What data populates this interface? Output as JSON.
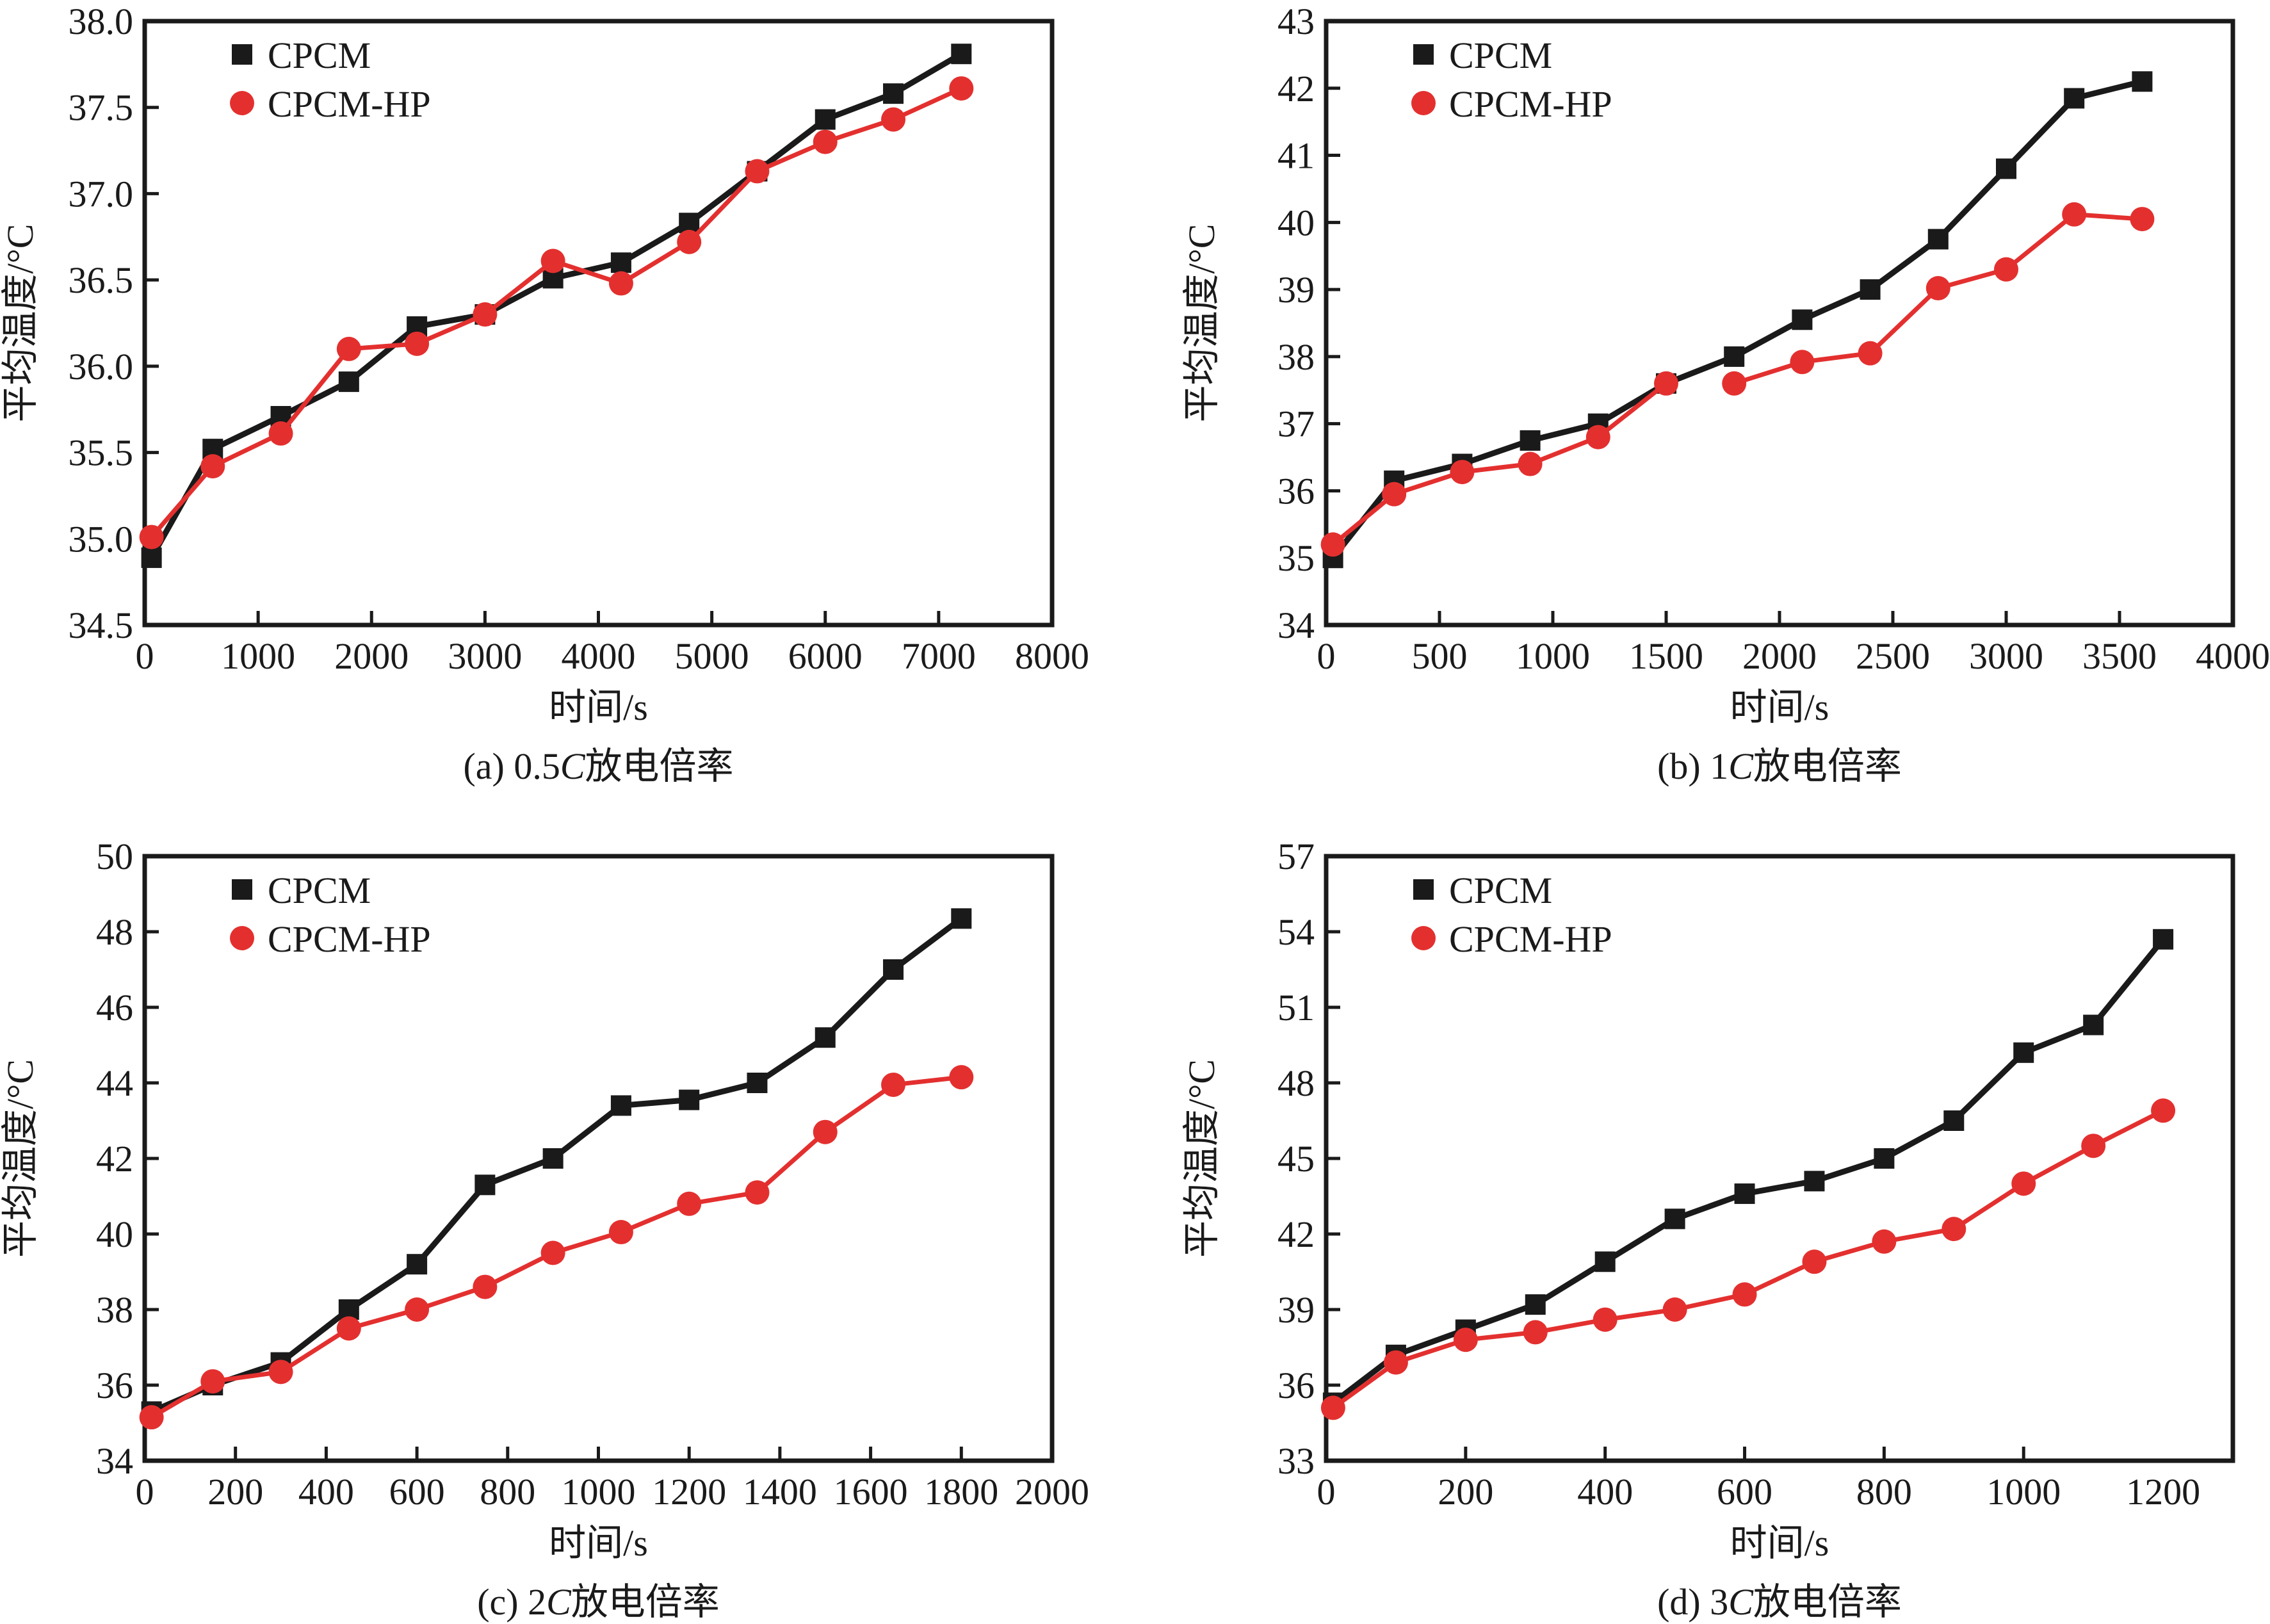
{
  "figure": {
    "colors": {
      "CPCM": "#1a1a1a",
      "CPCM-HP": "#e3302f",
      "axis": "#1a1a1a"
    }
  },
  "chart_data": [
    {
      "id": "a",
      "type": "line",
      "caption_prefix": "(a) 0.5",
      "caption_italic": "C",
      "caption_suffix": "放电倍率",
      "xlabel": "时间/s",
      "ylabel": "平均温度/°C",
      "xlim": [
        0,
        8000
      ],
      "ylim": [
        34.5,
        38.0
      ],
      "xticks": [
        0,
        1000,
        2000,
        3000,
        4000,
        5000,
        6000,
        7000,
        8000
      ],
      "xtick_labels": [
        "0",
        "1000",
        "2000",
        "3000",
        "4000",
        "5000",
        "6000",
        "7000",
        "8000"
      ],
      "yticks": [
        34.5,
        35.0,
        35.5,
        36.0,
        36.5,
        37.0,
        37.5,
        38.0
      ],
      "ytick_labels": [
        "34.5",
        "35.0",
        "35.5",
        "36.0",
        "36.5",
        "37.0",
        "37.5",
        "38.0"
      ],
      "grid": false,
      "legend_position": "top-left",
      "series": [
        {
          "name": "CPCM",
          "marker": "square",
          "x": [
            60,
            600,
            1200,
            1800,
            2400,
            3000,
            3600,
            4200,
            4800,
            5400,
            6000,
            6600,
            7200
          ],
          "y": [
            34.89,
            35.52,
            35.71,
            35.91,
            36.23,
            36.3,
            36.51,
            36.6,
            36.83,
            37.13,
            37.43,
            37.58,
            37.81
          ]
        },
        {
          "name": "CPCM-HP",
          "marker": "circle",
          "x": [
            60,
            600,
            1200,
            1800,
            2400,
            3000,
            3600,
            4200,
            4800,
            5400,
            6000,
            6600,
            7200
          ],
          "y": [
            35.01,
            35.42,
            35.61,
            36.1,
            36.13,
            36.3,
            36.61,
            36.48,
            36.72,
            37.13,
            37.3,
            37.43,
            37.61
          ]
        }
      ]
    },
    {
      "id": "b",
      "type": "line",
      "caption_prefix": "(b) 1",
      "caption_italic": "C",
      "caption_suffix": "放电倍率",
      "xlabel": "时间/s",
      "ylabel": "平均温度/°C",
      "xlim": [
        0,
        4000
      ],
      "ylim": [
        34,
        43
      ],
      "xticks": [
        0,
        500,
        1000,
        1500,
        2000,
        2500,
        3000,
        3500,
        4000
      ],
      "xtick_labels": [
        "0",
        "500",
        "1000",
        "1500",
        "2000",
        "2500",
        "3000",
        "3500",
        "4000"
      ],
      "yticks": [
        34,
        35,
        36,
        37,
        38,
        39,
        40,
        41,
        42,
        43
      ],
      "ytick_labels": [
        "34",
        "35",
        "36",
        "37",
        "38",
        "39",
        "40",
        "41",
        "42",
        "43"
      ],
      "grid": false,
      "legend_position": "top-left",
      "series": [
        {
          "name": "CPCM",
          "marker": "square",
          "x": [
            30,
            300,
            600,
            900,
            1200,
            1500,
            1800,
            2100,
            2400,
            2700,
            3000,
            3300,
            3600
          ],
          "y": [
            35.0,
            36.15,
            36.4,
            36.75,
            37.0,
            37.6,
            38.0,
            38.55,
            39.0,
            39.75,
            40.8,
            41.85,
            42.1
          ]
        },
        {
          "name": "CPCM-HP",
          "marker": "circle",
          "x": [
            30,
            300,
            600,
            900,
            1200,
            1500,
            1800,
            2100,
            2400,
            2700,
            3000,
            3300,
            3600
          ],
          "y": [
            35.2,
            35.95,
            36.28,
            36.4,
            36.8,
            37.6,
            37.6,
            37.92,
            38.05,
            39.02,
            39.3,
            40.12,
            40.05
          ],
          "segment_breaks": [
            6
          ]
        }
      ]
    },
    {
      "id": "c",
      "type": "line",
      "caption_prefix": "(c) 2",
      "caption_italic": "C",
      "caption_suffix": "放电倍率",
      "xlabel": "时间/s",
      "ylabel": "平均温度/°C",
      "xlim": [
        0,
        2000
      ],
      "ylim": [
        34,
        50
      ],
      "xticks": [
        0,
        200,
        400,
        600,
        800,
        1000,
        1200,
        1400,
        1600,
        1800,
        2000
      ],
      "xtick_labels": [
        "0",
        "200",
        "400",
        "600",
        "800",
        "1000",
        "1200",
        "1400",
        "1600",
        "1800",
        "2000"
      ],
      "yticks": [
        34,
        36,
        38,
        40,
        42,
        44,
        46,
        48,
        50
      ],
      "ytick_labels": [
        "34",
        "36",
        "38",
        "40",
        "42",
        "44",
        "46",
        "48",
        "50"
      ],
      "grid": false,
      "legend_position": "top-left",
      "series": [
        {
          "name": "CPCM",
          "marker": "square",
          "x": [
            15,
            150,
            300,
            450,
            600,
            750,
            900,
            1050,
            1200,
            1350,
            1500,
            1650,
            1800
          ],
          "y": [
            35.3,
            36.0,
            36.6,
            38.0,
            39.2,
            41.3,
            42.0,
            43.4,
            43.55,
            44.0,
            45.2,
            47.0,
            48.35
          ]
        },
        {
          "name": "CPCM-HP",
          "marker": "circle",
          "x": [
            15,
            150,
            300,
            450,
            600,
            750,
            900,
            1050,
            1200,
            1350,
            1500,
            1650,
            1800
          ],
          "y": [
            35.15,
            36.1,
            36.35,
            37.5,
            38.0,
            38.6,
            39.5,
            40.05,
            40.8,
            41.1,
            42.7,
            43.95,
            44.15
          ]
        }
      ]
    },
    {
      "id": "d",
      "type": "line",
      "caption_prefix": "(d) 3",
      "caption_italic": "C",
      "caption_suffix": "放电倍率",
      "xlabel": "时间/s",
      "ylabel": "平均温度/°C",
      "xlim": [
        0,
        1300
      ],
      "ylim": [
        33,
        57
      ],
      "xticks": [
        0,
        200,
        400,
        600,
        800,
        1000,
        1200
      ],
      "xtick_labels": [
        "0",
        "200",
        "400",
        "600",
        "800",
        "1000",
        "1200"
      ],
      "yticks": [
        33,
        36,
        39,
        42,
        45,
        48,
        51,
        54,
        57
      ],
      "ytick_labels": [
        "33",
        "36",
        "39",
        "42",
        "45",
        "48",
        "51",
        "54",
        "57"
      ],
      "grid": false,
      "legend_position": "top-left",
      "series": [
        {
          "name": "CPCM",
          "marker": "square",
          "x": [
            10,
            100,
            200,
            300,
            400,
            500,
            600,
            700,
            800,
            900,
            1000,
            1100,
            1200
          ],
          "y": [
            35.3,
            37.2,
            38.2,
            39.2,
            40.9,
            42.6,
            43.6,
            44.1,
            45.0,
            46.5,
            49.2,
            50.3,
            53.7
          ]
        },
        {
          "name": "CPCM-HP",
          "marker": "circle",
          "x": [
            10,
            100,
            200,
            300,
            400,
            500,
            600,
            700,
            800,
            900,
            1000,
            1100,
            1200
          ],
          "y": [
            35.1,
            36.9,
            37.8,
            38.1,
            38.6,
            39.0,
            39.6,
            40.9,
            41.7,
            42.2,
            44.0,
            45.5,
            46.9
          ]
        }
      ]
    }
  ]
}
